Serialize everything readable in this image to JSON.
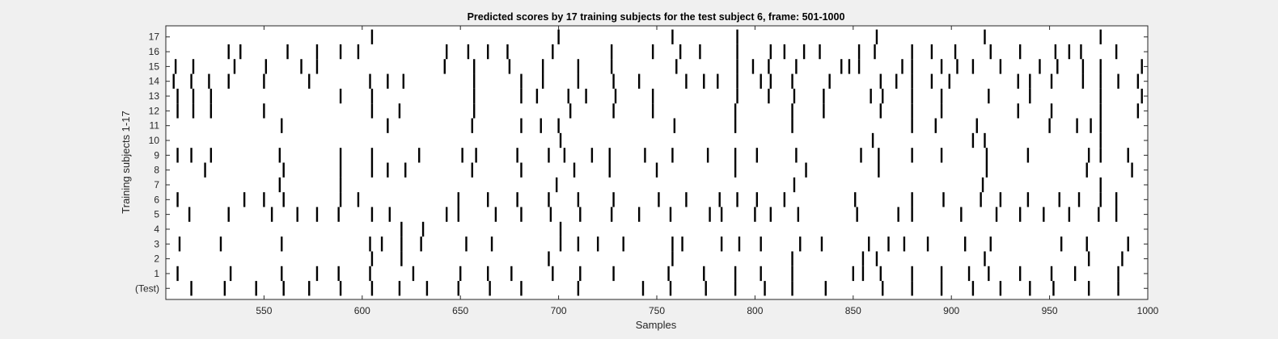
{
  "figure_background": "#f0f0f0",
  "chart_data": {
    "type": "raster",
    "title": "Predicted scores by 17 training subjects for the test subject 6, frame: 501-1000",
    "xlabel": "Samples",
    "ylabel": "Training subjects 1-17",
    "xlim": [
      500,
      1000
    ],
    "xticks": [
      550,
      600,
      650,
      700,
      750,
      800,
      850,
      900,
      950,
      1000
    ],
    "ytick_labels": [
      "(Test)",
      "1",
      "2",
      "3",
      "4",
      "5",
      "6",
      "7",
      "8",
      "9",
      "10",
      "11",
      "12",
      "13",
      "14",
      "15",
      "16",
      "17"
    ],
    "grid": false,
    "marker_color": "#000000",
    "axes_background": "#ffffff",
    "rows": [
      {
        "label": "(Test)",
        "events": [
          513,
          530,
          546,
          560,
          573,
          589,
          605,
          619,
          633,
          649,
          665,
          681,
          710,
          743,
          757,
          775,
          790,
          805,
          819,
          836,
          865,
          880,
          895,
          911,
          925,
          940,
          952,
          970,
          985
        ]
      },
      {
        "label": "1",
        "events": [
          506,
          533,
          559,
          577,
          588,
          604,
          626,
          650,
          664,
          676,
          697,
          711,
          728,
          756,
          774,
          790,
          803,
          819,
          850,
          855,
          864,
          880,
          895,
          909,
          919,
          935,
          951,
          963,
          985
        ]
      },
      {
        "label": "2",
        "events": [
          605,
          620,
          695,
          758,
          819,
          855,
          862,
          917,
          970,
          987
        ]
      },
      {
        "label": "3",
        "events": [
          507,
          528,
          559,
          604,
          610,
          620,
          630,
          653,
          666,
          701,
          710,
          720,
          733,
          758,
          763,
          783,
          792,
          803,
          823,
          834,
          858,
          868,
          876,
          888,
          907,
          920,
          956,
          969,
          990
        ]
      },
      {
        "label": "4",
        "events": [
          620,
          631,
          701
        ]
      },
      {
        "label": "5",
        "events": [
          512,
          532,
          554,
          567,
          577,
          588,
          605,
          614,
          643,
          649,
          668,
          681,
          696,
          711,
          727,
          741,
          757,
          777,
          783,
          800,
          808,
          822,
          852,
          873,
          880,
          905,
          923,
          935,
          947,
          960,
          975,
          984
        ]
      },
      {
        "label": "6",
        "events": [
          506,
          540,
          550,
          560,
          589,
          598,
          649,
          664,
          679,
          695,
          710,
          728,
          751,
          765,
          782,
          791,
          801,
          815,
          851,
          880,
          896,
          915,
          925,
          939,
          955,
          965,
          976,
          984
        ]
      },
      {
        "label": "7",
        "events": [
          558,
          589,
          699,
          820,
          916,
          976
        ]
      },
      {
        "label": "8",
        "events": [
          520,
          560,
          589,
          605,
          613,
          622,
          656,
          681,
          708,
          726,
          750,
          790,
          826,
          863,
          918,
          969,
          992
        ]
      },
      {
        "label": "9",
        "events": [
          506,
          513,
          523,
          558,
          589,
          605,
          629,
          651,
          658,
          679,
          695,
          703,
          717,
          726,
          744,
          758,
          776,
          790,
          801,
          821,
          854,
          863,
          880,
          895,
          918,
          939,
          970,
          976,
          990
        ]
      },
      {
        "label": "10",
        "events": [
          701,
          860,
          911,
          917,
          976
        ]
      },
      {
        "label": "11",
        "events": [
          559,
          613,
          656,
          681,
          691,
          700,
          759,
          790,
          819,
          880,
          892,
          913,
          950,
          964,
          971,
          976
        ]
      },
      {
        "label": "12",
        "events": [
          506,
          514,
          523,
          550,
          605,
          619,
          657,
          706,
          728,
          748,
          790,
          819,
          835,
          864,
          880,
          895,
          934,
          951,
          976,
          995
        ]
      },
      {
        "label": "13",
        "events": [
          506,
          514,
          523,
          589,
          605,
          657,
          681,
          689,
          705,
          714,
          729,
          748,
          791,
          807,
          820,
          835,
          859,
          865,
          880,
          895,
          919,
          940,
          976,
          997
        ]
      },
      {
        "label": "14",
        "events": [
          504,
          513,
          522,
          532,
          550,
          573,
          604,
          613,
          621,
          657,
          681,
          692,
          710,
          728,
          741,
          765,
          774,
          781,
          791,
          803,
          808,
          819,
          838,
          864,
          872,
          880,
          890,
          899,
          934,
          940,
          951,
          967,
          976,
          985,
          995
        ]
      },
      {
        "label": "15",
        "events": [
          505,
          514,
          535,
          551,
          569,
          577,
          642,
          657,
          675,
          692,
          710,
          727,
          760,
          791,
          799,
          807,
          821,
          844,
          848,
          853,
          875,
          880,
          895,
          903,
          911,
          925,
          945,
          954,
          967,
          976,
          997
        ]
      },
      {
        "label": "16",
        "events": [
          532,
          538,
          562,
          577,
          589,
          598,
          643,
          654,
          664,
          674,
          697,
          727,
          748,
          762,
          772,
          791,
          808,
          815,
          825,
          833,
          853,
          861,
          880,
          890,
          902,
          920,
          935,
          953,
          960,
          966,
          984
        ]
      },
      {
        "label": "17",
        "events": [
          605,
          700,
          758,
          791,
          862,
          917,
          976
        ]
      }
    ]
  }
}
